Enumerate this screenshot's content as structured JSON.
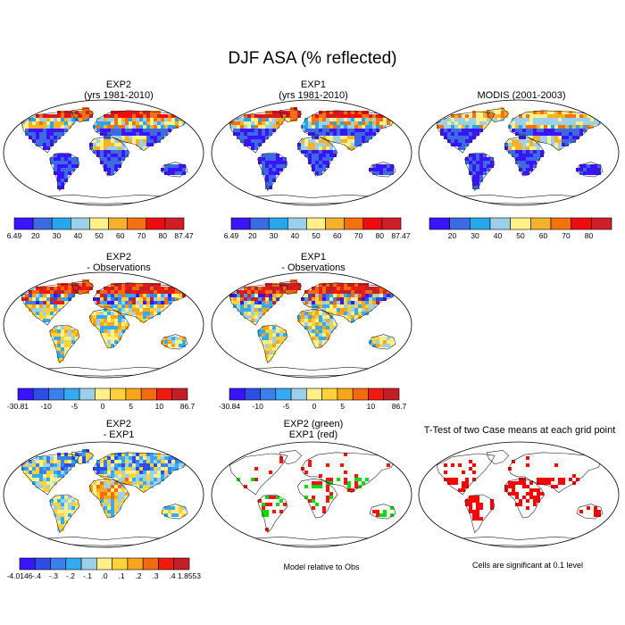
{
  "title": "DJF ASA (% reflected)",
  "palettes": {
    "abs": [
      "#3a14ff",
      "#3b6ae3",
      "#27a6ec",
      "#9cd0ea",
      "#fff08a",
      "#f4b12a",
      "#f5700e",
      "#ef0c10",
      "#d01e26"
    ],
    "diff": [
      "#3a14ff",
      "#2e4de4",
      "#3b80ea",
      "#34aaf2",
      "#9ccfea",
      "#fff08a",
      "#ffd23a",
      "#f7a51b",
      "#f46a10",
      "#ef1a10",
      "#c41e26"
    ]
  },
  "panels": [
    {
      "id": "exp2",
      "title1": "EXP2",
      "title2": "(yrs 1981-2010)",
      "style": "abs",
      "colorbar": {
        "labels": [
          "6.49",
          "20",
          "30",
          "40",
          "50",
          "60",
          "70",
          "80",
          "87.47"
        ]
      }
    },
    {
      "id": "exp1",
      "title1": "EXP1",
      "title2": "(yrs 1981-2010)",
      "style": "abs",
      "colorbar": {
        "labels": [
          "6.49",
          "20",
          "30",
          "40",
          "50",
          "60",
          "70",
          "80",
          "87.47"
        ]
      }
    },
    {
      "id": "modis",
      "title1": "MODIS (2001-2003)",
      "title2": "",
      "style": "modis",
      "colorbar": {
        "labels": [
          "",
          "20",
          "30",
          "40",
          "50",
          "60",
          "70",
          "80",
          ""
        ]
      }
    },
    {
      "id": "exp2obs",
      "title1": "EXP2",
      "title2": "- Observations",
      "style": "diff",
      "colorbar": {
        "labels": [
          "-30.81",
          "-10",
          "-5",
          "0",
          "5",
          "10",
          "86.7"
        ]
      }
    },
    {
      "id": "exp1obs",
      "title1": "EXP1",
      "title2": "- Observations",
      "style": "diff",
      "colorbar": {
        "labels": [
          "-30.84",
          "-10",
          "-5",
          "0",
          "5",
          "10",
          "86.7"
        ]
      }
    },
    {
      "id": "exp2exp1",
      "title1": "EXP2",
      "title2": "- EXP1",
      "style": "diffsmall",
      "colorbar": {
        "labels": [
          "-4.0146",
          "-.4",
          "-.3",
          "-.2",
          "-.1",
          ".0",
          ".1",
          ".2",
          ".3",
          ".4",
          "1.8553"
        ]
      }
    },
    {
      "id": "greenred",
      "title1": "EXP2 (green)",
      "title2": "EXP1 (red)",
      "style": "greenred",
      "caption": "Model relative to Obs"
    },
    {
      "id": "ttest",
      "title1": "T-Test of two Case means at each grid point",
      "title2": "",
      "style": "ttest",
      "caption": "Cells are significant at 0.1 level"
    }
  ]
}
